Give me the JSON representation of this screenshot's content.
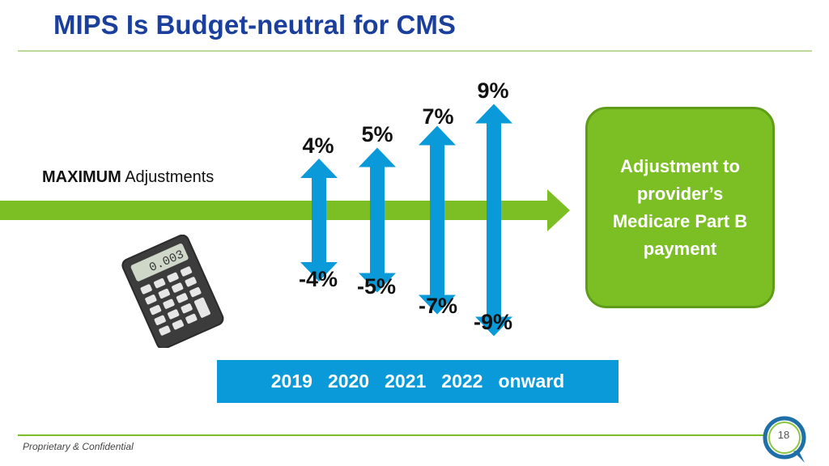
{
  "title": "MIPS Is Budget-neutral for CMS",
  "label": {
    "emphasis": "MAXIMUM",
    "rest": " Adjustments"
  },
  "arrows": [
    {
      "year": "2019",
      "up": "4%",
      "down": "-4%",
      "value": 4
    },
    {
      "year": "2020",
      "up": "5%",
      "down": "-5%",
      "value": 5
    },
    {
      "year": "2021",
      "up": "7%",
      "down": "-7%",
      "value": 7
    },
    {
      "year": "2022",
      "up": "9%",
      "down": "-9%",
      "value": 9
    }
  ],
  "result_box": "Adjustment to provider’s Medicare Part B payment",
  "years": [
    "2019",
    "2020",
    "2021",
    "2022",
    "onward"
  ],
  "calculator_display": "0.003",
  "footer": "Proprietary & Confidential",
  "page_number": "18",
  "colors": {
    "title": "#1a3f9c",
    "green": "#7bbf24",
    "blue": "#0a9ad9"
  }
}
